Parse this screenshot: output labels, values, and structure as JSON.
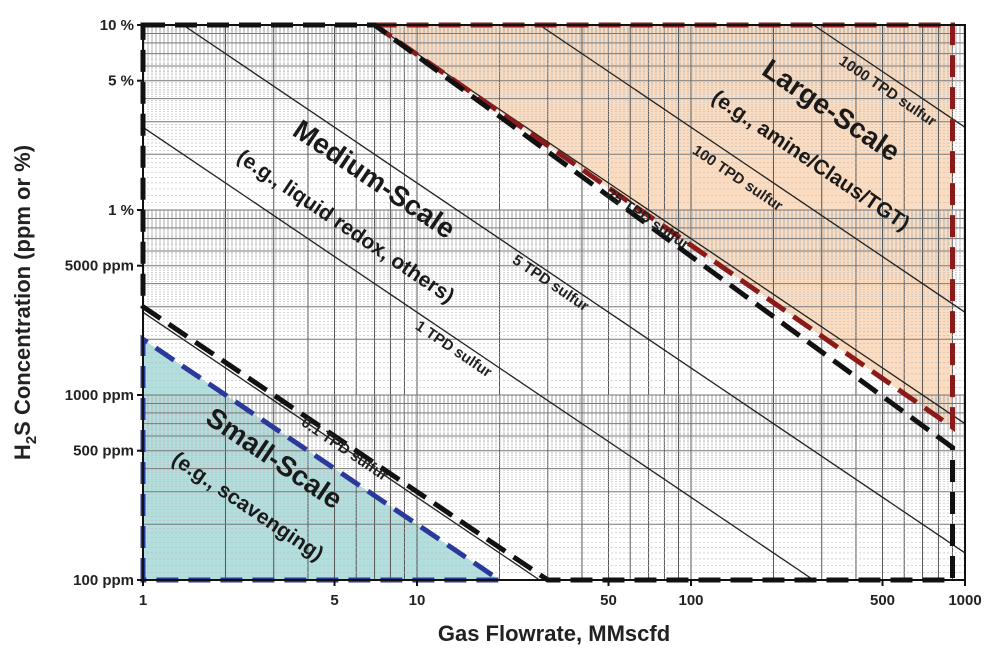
{
  "chart_data": {
    "type": "line",
    "x_scale": "log",
    "y_scale": "log",
    "xlim": [
      1,
      1000
    ],
    "ylim": [
      "100 ppm",
      "10 %"
    ],
    "xlabel": "Gas Flowrate, MMscfd",
    "ylabel": "H2S Concentration (ppm or %)",
    "x_ticks": [
      {
        "value": 1,
        "label": "1"
      },
      {
        "value": 5,
        "label": "5"
      },
      {
        "value": 10,
        "label": "10"
      },
      {
        "value": 50,
        "label": "50"
      },
      {
        "value": 100,
        "label": "100"
      },
      {
        "value": 500,
        "label": "500"
      },
      {
        "value": 1000,
        "label": "1000"
      }
    ],
    "y_ticks": [
      {
        "value_ppm": 100,
        "label": "100 ppm"
      },
      {
        "value_ppm": 500,
        "label": "500 ppm"
      },
      {
        "value_ppm": 1000,
        "label": "1000 ppm"
      },
      {
        "value_ppm": 5000,
        "label": "5000 ppm"
      },
      {
        "value_ppm": 10000,
        "label": "1 %"
      },
      {
        "value_ppm": 50000,
        "label": "5 %"
      },
      {
        "value_ppm": 100000,
        "label": "10 %"
      }
    ],
    "grid": true,
    "series": [
      {
        "name": "0.1 TPD sulfur",
        "tpd": 0.1,
        "color": "#222222"
      },
      {
        "name": "1 TPD sulfur",
        "tpd": 1,
        "color": "#222222"
      },
      {
        "name": "5 TPD sulfur",
        "tpd": 5,
        "color": "#222222"
      },
      {
        "name": "25 TPD sulfur",
        "tpd": 25,
        "color": "#222222"
      },
      {
        "name": "100 TPD sulfur",
        "tpd": 100,
        "color": "#222222"
      },
      {
        "name": "1000 TPD sulfur",
        "tpd": 1000,
        "color": "#222222"
      }
    ],
    "regions": [
      {
        "title": "Large-Scale",
        "subtitle": "(e.g., amine/Claus/TGT)",
        "fill": "#fbdcc0",
        "border": "#8b1a1a",
        "polygon": [
          [
            7,
            100000
          ],
          [
            900,
            100000
          ],
          [
            900,
            670
          ]
        ]
      },
      {
        "title": "Medium-Scale",
        "subtitle": "(e.g., liquid redox, others)",
        "fill": "none",
        "border": "#111111",
        "polygon": [
          [
            1,
            100000
          ],
          [
            7,
            100000
          ],
          [
            900,
            520
          ],
          [
            900,
            100
          ],
          [
            30,
            100
          ],
          [
            1,
            3000
          ]
        ]
      },
      {
        "title": "Small-Scale",
        "subtitle": "(e.g., scavenging)",
        "fill": "#b3dede",
        "border": "#2a3a9a",
        "polygon": [
          [
            1,
            100
          ],
          [
            1,
            2000
          ],
          [
            20,
            100
          ]
        ]
      }
    ]
  }
}
